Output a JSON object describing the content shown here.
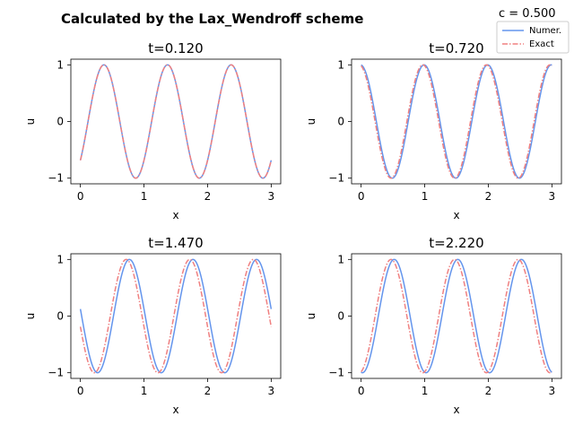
{
  "figure": {
    "title": "Calculated by the Lax_Wendroff scheme",
    "c_label": "c = 0.500",
    "legend": [
      "Numer.",
      "Exact"
    ],
    "colors": {
      "numer": "#6495ED",
      "exact": "#F08080"
    }
  },
  "chart_data": [
    {
      "type": "line",
      "title": "t=0.120",
      "xlabel": "x",
      "ylabel": "u",
      "xlim": [
        -0.15,
        3.15
      ],
      "ylim": [
        -1.1,
        1.1
      ],
      "xticks": [
        "0",
        "1",
        "2",
        "3"
      ],
      "yticks": [
        "1",
        "0",
        "−1"
      ],
      "series": [
        {
          "name": "Numer.",
          "style": "solid",
          "function": "sin(2*pi*(x - 0.120))",
          "x_range": [
            0,
            3
          ],
          "deviation_note": ""
        },
        {
          "name": "Exact",
          "style": "dashdot",
          "function": "sin(2*pi*(x - 0.120))",
          "x_range": [
            0,
            3
          ]
        }
      ],
      "numer_offset": 0.0
    },
    {
      "type": "line",
      "title": "t=0.720",
      "xlabel": "x",
      "ylabel": "u",
      "xlim": [
        -0.15,
        3.15
      ],
      "ylim": [
        -1.1,
        1.1
      ],
      "xticks": [
        "0",
        "1",
        "2",
        "3"
      ],
      "yticks": [
        "1",
        "0",
        "−1"
      ],
      "series": [
        {
          "name": "Numer.",
          "style": "solid",
          "function": "sin(2*pi*(x - 0.720))",
          "x_range": [
            0,
            3
          ]
        },
        {
          "name": "Exact",
          "style": "dashdot",
          "function": "sin(2*pi*(x - 0.720))",
          "x_range": [
            0,
            3
          ]
        }
      ],
      "numer_offset": -0.02
    },
    {
      "type": "line",
      "title": "t=1.470",
      "xlabel": "x",
      "ylabel": "u",
      "xlim": [
        -0.15,
        3.15
      ],
      "ylim": [
        -1.1,
        1.1
      ],
      "xticks": [
        "0",
        "1",
        "2",
        "3"
      ],
      "yticks": [
        "1",
        "0",
        "−1"
      ],
      "series": [
        {
          "name": "Numer.",
          "style": "solid",
          "function": "sin(2*pi*(x - 1.470))",
          "x_range": [
            0,
            3
          ]
        },
        {
          "name": "Exact",
          "style": "dashdot",
          "function": "sin(2*pi*(x - 1.470))",
          "x_range": [
            0,
            3
          ]
        }
      ],
      "numer_offset": -0.05
    },
    {
      "type": "line",
      "title": "t=2.220",
      "xlabel": "x",
      "ylabel": "u",
      "xlim": [
        -0.15,
        3.15
      ],
      "ylim": [
        -1.1,
        1.1
      ],
      "xticks": [
        "0",
        "1",
        "2",
        "3"
      ],
      "yticks": [
        "1",
        "0",
        "−1"
      ],
      "series": [
        {
          "name": "Numer.",
          "style": "solid",
          "function": "sin(2*pi*(x - 2.220))",
          "x_range": [
            0,
            3
          ]
        },
        {
          "name": "Exact",
          "style": "dashdot",
          "function": "sin(2*pi*(x - 2.220))",
          "x_range": [
            0,
            3
          ]
        }
      ],
      "numer_offset": -0.05
    }
  ]
}
